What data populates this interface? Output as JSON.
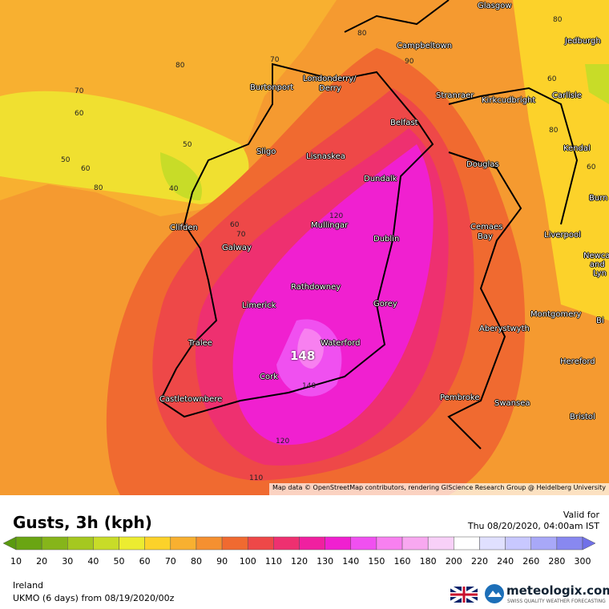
{
  "map": {
    "cities": [
      "Glasgow",
      "Campbeltown",
      "Jedburgh",
      "Londonderry/",
      "Derry",
      "Burtonport",
      "Stranraer",
      "Kirkcudbright",
      "Carlisle",
      "Belfast",
      "Sligo",
      "Lisnaskea",
      "Kendal",
      "Douglas",
      "Dundalk",
      "Burn",
      "Clifden",
      "Mullingar",
      "Cemaes",
      "Bay",
      "Galway",
      "Dublin",
      "Liverpool",
      "Newca",
      "and",
      "Lyn",
      "Rathdowney",
      "Limerick",
      "Gorey",
      "Montgomery",
      "Bi",
      "Aberystwyth",
      "Tralee",
      "Waterford",
      "Hereford",
      "Cork",
      "Castletownbere",
      "Pembroke",
      "Swansea",
      "Bristol"
    ],
    "contours": [
      "80",
      "70",
      "80",
      "70",
      "60",
      "60",
      "50",
      "50",
      "60",
      "80",
      "40",
      "60",
      "70",
      "80",
      "90",
      "80",
      "60",
      "120",
      "148",
      "140",
      "120",
      "110"
    ],
    "attribution": "Map data © OpenStreetMap contributors, rendering GIScience Research Group @ Heidelberg University"
  },
  "footer": {
    "title": "Gusts, 3h (kph)",
    "valid_label": "Valid for",
    "valid_time": "Thu 08/20/2020, 04:00am IST",
    "region": "Ireland",
    "model": "UKMO (6 days) from 08/19/2020/00z",
    "brand": "meteologix.com",
    "tagline": "SWISS QUALITY WEATHER FORECASTING"
  },
  "legend": {
    "labels": [
      "10",
      "20",
      "30",
      "40",
      "50",
      "60",
      "70",
      "80",
      "90",
      "100",
      "110",
      "120",
      "130",
      "140",
      "150",
      "160",
      "180",
      "200",
      "220",
      "240",
      "260",
      "280",
      "300"
    ],
    "colors": [
      "#5a9a10",
      "#6aa513",
      "#86b51a",
      "#a5c820",
      "#c8dc28",
      "#ecec30",
      "#fcd22a",
      "#f8b030",
      "#f59030",
      "#f06a30",
      "#ee4848",
      "#ee3070",
      "#f020a0",
      "#f020d0",
      "#f050f0",
      "#f880f0",
      "#f8a8f0",
      "#f8d0f8",
      "#ffffff",
      "#e0e0ff",
      "#c8c8ff",
      "#a8a8f8",
      "#8888f0",
      "#7070e8"
    ]
  }
}
